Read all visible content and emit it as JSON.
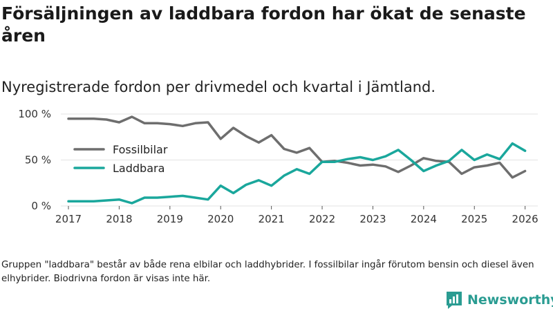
{
  "header": {
    "title": "Försäljningen av laddbara fordon har ökat de senaste åren",
    "subtitle": "Nyregistrerade fordon per drivmedel och kvartal i Jämtland."
  },
  "footnote": "Gruppen \"laddbara\" består av både rena elbilar och laddhybrider. I fossilbilar ingår förutom bensin och diesel även elhybrider. Biodrivna fordon är visas inte här.",
  "brand": {
    "name": "Newsworthy"
  },
  "colors": {
    "fossil": "#6e6e6e",
    "laddbara": "#1aa79c",
    "grid": "#e3e3e3",
    "brand": "#2a9c92"
  },
  "chart_data": {
    "type": "line",
    "title": "Försäljningen av laddbara fordon har ökat de senaste åren",
    "xlabel": "",
    "ylabel": "",
    "xlim": [
      2016.85,
      2026.25
    ],
    "ylim": [
      0,
      100
    ],
    "y_ticks": [
      0,
      50,
      100
    ],
    "y_tick_labels": [
      "0 %",
      "50 %",
      "100 %"
    ],
    "x_ticks": [
      2017,
      2018,
      2019,
      2020,
      2021,
      2022,
      2023,
      2024,
      2025,
      2026
    ],
    "x_tick_labels": [
      "2017",
      "2018",
      "2019",
      "2020",
      "2021",
      "2022",
      "2023",
      "2024",
      "2025",
      "2026"
    ],
    "legend_position": "left-middle",
    "x": [
      2017.0,
      2017.25,
      2017.5,
      2017.75,
      2018.0,
      2018.25,
      2018.5,
      2018.75,
      2019.0,
      2019.25,
      2019.5,
      2019.75,
      2020.0,
      2020.25,
      2020.5,
      2020.75,
      2021.0,
      2021.25,
      2021.5,
      2021.75,
      2022.0,
      2022.25,
      2022.5,
      2022.75,
      2023.0,
      2023.25,
      2023.5,
      2023.75,
      2024.0,
      2024.25,
      2024.5,
      2024.75,
      2025.0,
      2025.25,
      2025.5,
      2025.75,
      2026.0
    ],
    "series": [
      {
        "name": "Fossilbilar",
        "color": "#6e6e6e",
        "values": [
          95,
          95,
          95,
          94,
          91,
          97,
          90,
          90,
          89,
          87,
          90,
          91,
          73,
          85,
          76,
          69,
          77,
          62,
          58,
          63,
          48,
          49,
          47,
          44,
          45,
          43,
          37,
          44,
          52,
          49,
          48,
          35,
          42,
          44,
          47,
          31,
          38
        ]
      },
      {
        "name": "Laddbara",
        "color": "#1aa79c",
        "values": [
          5,
          5,
          5,
          6,
          7,
          3,
          9,
          9,
          10,
          11,
          9,
          7,
          22,
          14,
          23,
          28,
          22,
          33,
          40,
          35,
          48,
          48,
          51,
          53,
          50,
          54,
          61,
          50,
          38,
          44,
          49,
          61,
          50,
          56,
          51,
          68,
          60
        ]
      }
    ]
  }
}
